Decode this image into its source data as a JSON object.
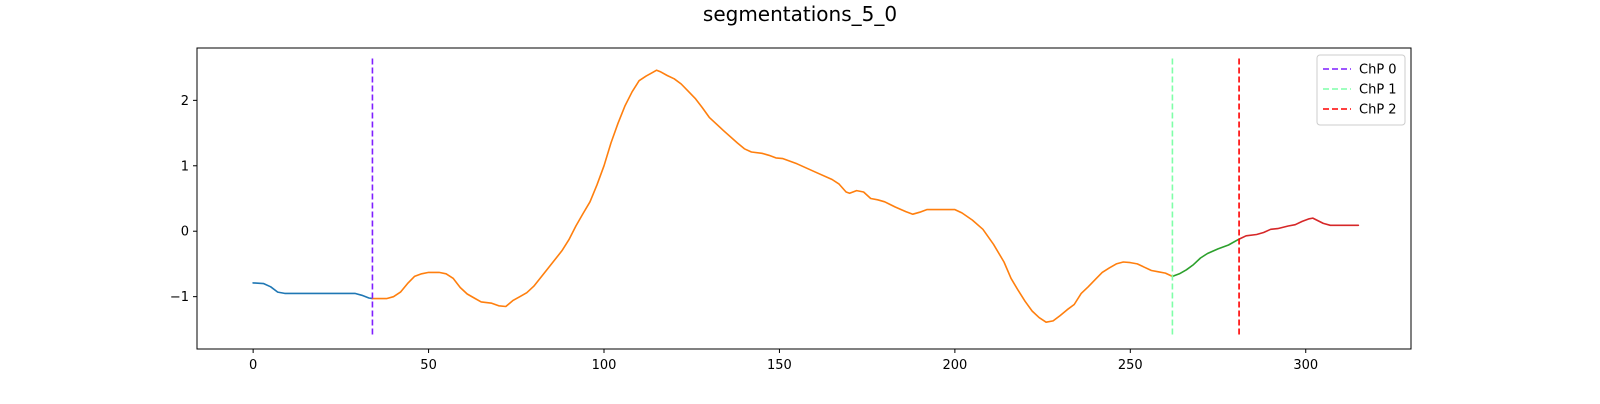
{
  "chart_data": {
    "type": "line",
    "title": "segmentations_5_0",
    "xlabel": "",
    "ylabel": "",
    "xlim": [
      -16,
      330
    ],
    "ylim": [
      -1.8,
      2.8
    ],
    "x_ticks": [
      0,
      50,
      100,
      150,
      200,
      250,
      300
    ],
    "y_ticks": [
      -1,
      0,
      1,
      2
    ],
    "x_tick_labels": [
      "0",
      "50",
      "100",
      "150",
      "200",
      "250",
      "300"
    ],
    "y_tick_labels": [
      "−1",
      "0",
      "1",
      "2"
    ],
    "grid": false,
    "legend_position": "top-right",
    "segments": [
      {
        "color": "#1f77b4",
        "points": [
          [
            0,
            -0.79
          ],
          [
            3,
            -0.8
          ],
          [
            5,
            -0.85
          ],
          [
            7,
            -0.93
          ],
          [
            9,
            -0.95
          ],
          [
            15,
            -0.95
          ],
          [
            20,
            -0.95
          ],
          [
            25,
            -0.95
          ],
          [
            29,
            -0.95
          ],
          [
            31,
            -0.98
          ],
          [
            33,
            -1.02
          ],
          [
            34,
            -1.03
          ]
        ]
      },
      {
        "color": "#ff7f0e",
        "points": [
          [
            34,
            -1.03
          ],
          [
            36,
            -1.03
          ],
          [
            38,
            -1.03
          ],
          [
            40,
            -1.0
          ],
          [
            42,
            -0.93
          ],
          [
            44,
            -0.8
          ],
          [
            46,
            -0.69
          ],
          [
            48,
            -0.65
          ],
          [
            50,
            -0.63
          ],
          [
            53,
            -0.63
          ],
          [
            55,
            -0.65
          ],
          [
            57,
            -0.72
          ],
          [
            59,
            -0.86
          ],
          [
            61,
            -0.96
          ],
          [
            63,
            -1.02
          ],
          [
            65,
            -1.08
          ],
          [
            68,
            -1.1
          ],
          [
            70,
            -1.14
          ],
          [
            72,
            -1.15
          ],
          [
            74,
            -1.06
          ],
          [
            76,
            -1.0
          ],
          [
            78,
            -0.94
          ],
          [
            80,
            -0.84
          ],
          [
            84,
            -0.57
          ],
          [
            88,
            -0.3
          ],
          [
            90,
            -0.13
          ],
          [
            92,
            0.08
          ],
          [
            94,
            0.27
          ],
          [
            96,
            0.45
          ],
          [
            98,
            0.71
          ],
          [
            100,
            1.0
          ],
          [
            102,
            1.35
          ],
          [
            104,
            1.65
          ],
          [
            106,
            1.92
          ],
          [
            108,
            2.13
          ],
          [
            110,
            2.3
          ],
          [
            112,
            2.37
          ],
          [
            114,
            2.43
          ],
          [
            115,
            2.46
          ],
          [
            116,
            2.44
          ],
          [
            118,
            2.38
          ],
          [
            120,
            2.33
          ],
          [
            122,
            2.25
          ],
          [
            124,
            2.14
          ],
          [
            126,
            2.03
          ],
          [
            128,
            1.89
          ],
          [
            130,
            1.74
          ],
          [
            134,
            1.54
          ],
          [
            138,
            1.35
          ],
          [
            140,
            1.26
          ],
          [
            142,
            1.21
          ],
          [
            145,
            1.19
          ],
          [
            147,
            1.16
          ],
          [
            149,
            1.12
          ],
          [
            151,
            1.11
          ],
          [
            155,
            1.03
          ],
          [
            160,
            0.91
          ],
          [
            165,
            0.79
          ],
          [
            167,
            0.72
          ],
          [
            169,
            0.6
          ],
          [
            170,
            0.58
          ],
          [
            172,
            0.62
          ],
          [
            174,
            0.6
          ],
          [
            176,
            0.5
          ],
          [
            178,
            0.48
          ],
          [
            180,
            0.45
          ],
          [
            183,
            0.37
          ],
          [
            186,
            0.3
          ],
          [
            188,
            0.26
          ],
          [
            190,
            0.29
          ],
          [
            192,
            0.33
          ],
          [
            200,
            0.33
          ],
          [
            202,
            0.28
          ],
          [
            205,
            0.17
          ],
          [
            208,
            0.03
          ],
          [
            211,
            -0.2
          ],
          [
            214,
            -0.47
          ],
          [
            216,
            -0.72
          ],
          [
            218,
            -0.9
          ],
          [
            220,
            -1.07
          ],
          [
            222,
            -1.22
          ],
          [
            224,
            -1.32
          ],
          [
            226,
            -1.39
          ],
          [
            228,
            -1.37
          ],
          [
            230,
            -1.29
          ],
          [
            232,
            -1.2
          ],
          [
            234,
            -1.12
          ],
          [
            236,
            -0.95
          ],
          [
            238,
            -0.85
          ],
          [
            240,
            -0.74
          ],
          [
            242,
            -0.63
          ],
          [
            244,
            -0.56
          ],
          [
            246,
            -0.5
          ],
          [
            248,
            -0.47
          ],
          [
            250,
            -0.48
          ],
          [
            252,
            -0.5
          ],
          [
            254,
            -0.55
          ],
          [
            256,
            -0.6
          ],
          [
            258,
            -0.62
          ],
          [
            260,
            -0.64
          ],
          [
            262,
            -0.69
          ]
        ]
      },
      {
        "color": "#2ca02c",
        "points": [
          [
            262,
            -0.69
          ],
          [
            264,
            -0.65
          ],
          [
            266,
            -0.59
          ],
          [
            268,
            -0.51
          ],
          [
            270,
            -0.41
          ],
          [
            272,
            -0.34
          ],
          [
            275,
            -0.27
          ],
          [
            278,
            -0.21
          ],
          [
            281,
            -0.12
          ]
        ]
      },
      {
        "color": "#d62728",
        "points": [
          [
            281,
            -0.12
          ],
          [
            283,
            -0.07
          ],
          [
            286,
            -0.05
          ],
          [
            288,
            -0.02
          ],
          [
            290,
            0.03
          ],
          [
            292,
            0.04
          ],
          [
            295,
            0.08
          ],
          [
            297,
            0.1
          ],
          [
            299,
            0.15
          ],
          [
            301,
            0.19
          ],
          [
            302,
            0.2
          ],
          [
            305,
            0.12
          ],
          [
            307,
            0.09
          ],
          [
            310,
            0.09
          ],
          [
            315,
            0.09
          ]
        ]
      }
    ],
    "change_points": [
      {
        "name": "ChP 0",
        "x": 34,
        "color": "#7f1fff"
      },
      {
        "name": "ChP 1",
        "x": 262,
        "color": "#7fffa8"
      },
      {
        "name": "ChP 2",
        "x": 281,
        "color": "#ff0000"
      }
    ],
    "vline_range": [
      -1.6,
      2.64
    ]
  }
}
